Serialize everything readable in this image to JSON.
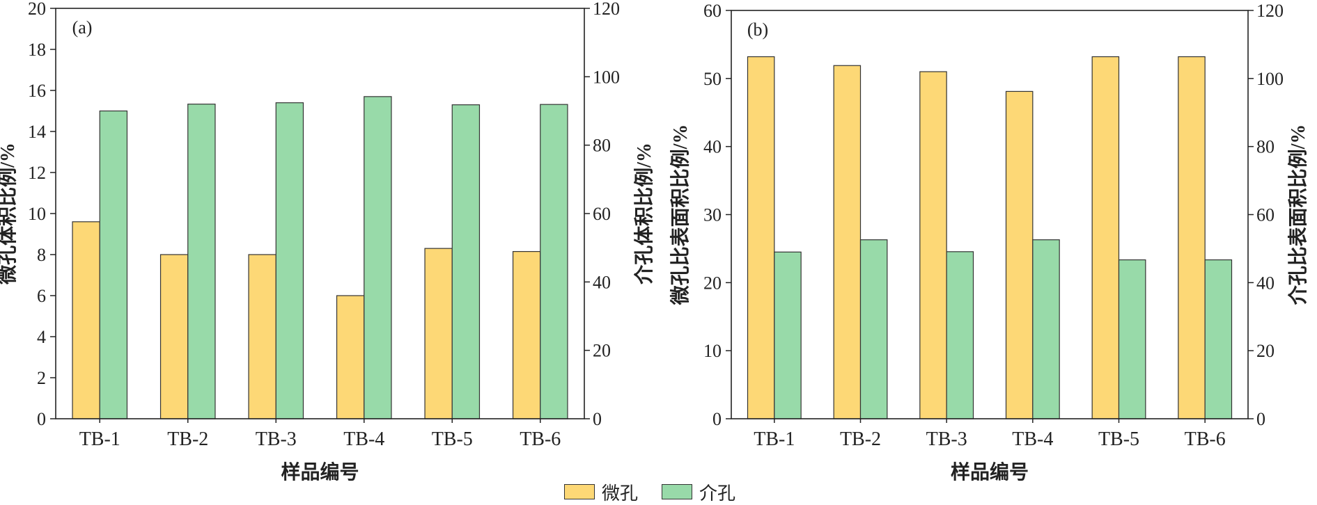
{
  "legend": {
    "items": [
      {
        "label": "微孔",
        "color": "#FDD876"
      },
      {
        "label": "介孔",
        "color": "#98DAA9"
      }
    ]
  },
  "chart_data": [
    {
      "type": "bar",
      "panel_label": "(a)",
      "categories": [
        "TB-1",
        "TB-2",
        "TB-3",
        "TB-4",
        "TB-5",
        "TB-6"
      ],
      "xlabel": "样品编号",
      "ylabel_left": "微孔体积比例/%",
      "ylabel_right": "介孔体积比例/%",
      "ylim_left": [
        0,
        20
      ],
      "ylim_right": [
        0,
        120
      ],
      "yticks_left": [
        "0",
        "2",
        "4",
        "6",
        "8",
        "10",
        "12",
        "14",
        "16",
        "18",
        "20"
      ],
      "yticks_right": [
        "0",
        "20",
        "40",
        "60",
        "80",
        "100",
        "120"
      ],
      "series": [
        {
          "name": "微孔",
          "axis": "left",
          "color": "#FDD876",
          "values": [
            9.6,
            8.0,
            8.0,
            6.0,
            8.3,
            8.15
          ]
        },
        {
          "name": "介孔",
          "axis": "right",
          "color": "#98DAA9",
          "values": [
            90.0,
            92.0,
            92.4,
            94.2,
            91.8,
            91.9
          ]
        }
      ]
    },
    {
      "type": "bar",
      "panel_label": "(b)",
      "categories": [
        "TB-1",
        "TB-2",
        "TB-3",
        "TB-4",
        "TB-5",
        "TB-6"
      ],
      "xlabel": "样品编号",
      "ylabel_left": "微孔比表面积比例/%",
      "ylabel_right": "介孔比表面积比例/%",
      "ylim_left": [
        0,
        60
      ],
      "ylim_right": [
        0,
        120
      ],
      "yticks_left": [
        "0",
        "10",
        "20",
        "30",
        "40",
        "50",
        "60"
      ],
      "yticks_right": [
        "0",
        "20",
        "40",
        "60",
        "80",
        "100",
        "120"
      ],
      "series": [
        {
          "name": "微孔",
          "axis": "left",
          "color": "#FDD876",
          "values": [
            53.2,
            51.9,
            51.0,
            48.1,
            53.2,
            53.2
          ]
        },
        {
          "name": "介孔",
          "axis": "right",
          "color": "#98DAA9",
          "values": [
            49.0,
            52.6,
            49.1,
            52.6,
            46.7,
            46.7
          ]
        }
      ]
    }
  ]
}
